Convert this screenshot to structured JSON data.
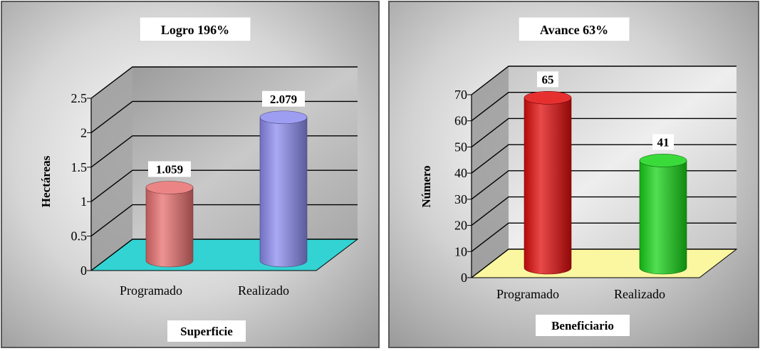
{
  "chart_data": [
    {
      "type": "bar",
      "title": "Logro 196%",
      "xlabel": "Superficie",
      "ylabel": "Hectáreas",
      "categories": [
        "Programado",
        "Realizado"
      ],
      "values": [
        1.059,
        2.079
      ],
      "value_labels": [
        "1.059",
        "2.079"
      ],
      "ylim": [
        0,
        2.5
      ],
      "yticks": [
        0,
        0.5,
        1,
        1.5,
        2,
        2.5
      ],
      "ytick_labels": [
        "0",
        "0.5",
        "1",
        "1.5",
        "2",
        "2.5"
      ],
      "grid": true,
      "style": "3d-cylinder",
      "colors": [
        "#e86f6f",
        "#8c8cf0"
      ],
      "floor_color": "#33d3d3"
    },
    {
      "type": "bar",
      "title": "Avance 63%",
      "xlabel": "Beneficiario",
      "ylabel": "Número",
      "categories": [
        "Programado",
        "Realizado"
      ],
      "values": [
        65,
        41
      ],
      "value_labels": [
        "65",
        "41"
      ],
      "ylim": [
        0,
        70
      ],
      "yticks": [
        0,
        10,
        20,
        30,
        40,
        50,
        60,
        70
      ],
      "ytick_labels": [
        "0",
        "10",
        "20",
        "30",
        "40",
        "50",
        "60",
        "70"
      ],
      "grid": true,
      "style": "3d-cylinder",
      "colors": [
        "#e10c0c",
        "#18d418"
      ],
      "floor_color": "#fbf7a0"
    }
  ]
}
